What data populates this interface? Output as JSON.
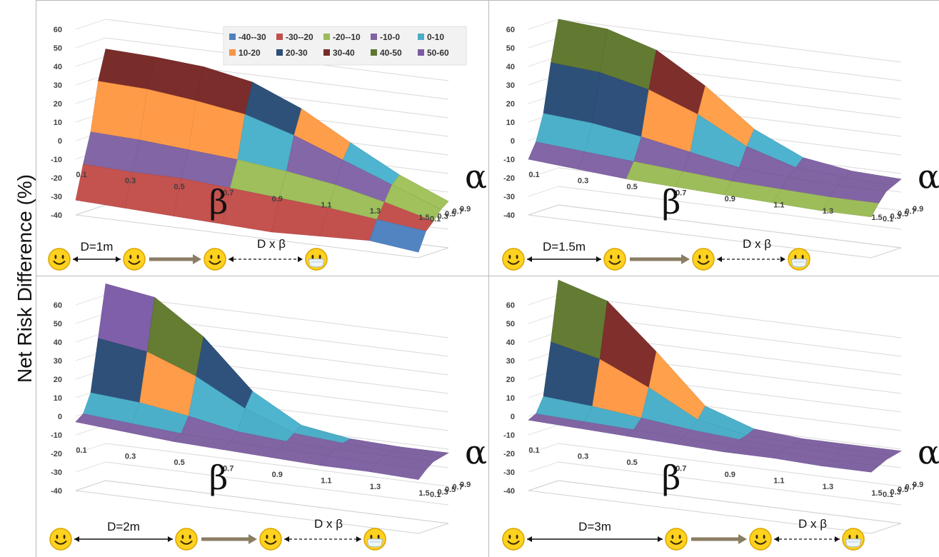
{
  "figure": {
    "ylabel": "Net Risk Difference (%)",
    "y_ticks": [
      "60",
      "50",
      "40",
      "30",
      "20",
      "10",
      "0",
      "-10",
      "-20",
      "-30",
      "-40"
    ],
    "beta_ticks": [
      "0.1",
      "0.3",
      "0.5",
      "0.7",
      "0.9",
      "1.1",
      "1.3",
      "1.5"
    ],
    "alpha_ticks": [
      "0.1",
      "0.3",
      "0.5",
      "0.7",
      "0.9"
    ],
    "beta_symbol": "β",
    "alpha_symbol": "α",
    "distance_product_label": "D x β"
  },
  "legend": {
    "items": [
      {
        "label": "-40--30",
        "color": "#4f81bd"
      },
      {
        "label": "-30--20",
        "color": "#c0504d"
      },
      {
        "label": "-20--10",
        "color": "#9bbb59"
      },
      {
        "label": "-10-0",
        "color": "#8064a2"
      },
      {
        "label": "0-10",
        "color": "#4bacc6"
      },
      {
        "label": "10-20",
        "color": "#f79646"
      },
      {
        "label": "20-30",
        "color": "#2c4d75"
      },
      {
        "label": "30-40",
        "color": "#772c2a"
      },
      {
        "label": "40-50",
        "color": "#5f7530"
      },
      {
        "label": "50-60",
        "color": "#7a5ba3"
      }
    ]
  },
  "chart_data": [
    {
      "type": "surface",
      "distance_label": "D=1m",
      "xlabel": "β",
      "zlabel": "α",
      "ylabel": "Net Risk Difference (%)",
      "x": [
        0.1,
        0.3,
        0.5,
        0.7,
        0.9,
        1.1,
        1.3,
        1.5
      ],
      "z": [
        0.1,
        0.3,
        0.5,
        0.7,
        0.9
      ],
      "ylim": [
        -40,
        60
      ],
      "values": [
        [
          -32,
          -33,
          -34,
          -35,
          -36,
          -35,
          -34,
          -37
        ],
        [
          -14,
          -15,
          -15,
          -17,
          -19,
          -21,
          -24,
          -27
        ],
        [
          2,
          1,
          -1,
          -3,
          -6,
          -10,
          -16,
          -23
        ],
        [
          28,
          27,
          24,
          20,
          12,
          2,
          -8,
          -18
        ],
        [
          44,
          43,
          41,
          36,
          25,
          10,
          -4,
          -15
        ]
      ]
    },
    {
      "type": "surface",
      "distance_label": "D=1.5m",
      "xlabel": "β",
      "zlabel": "α",
      "ylabel": "Net Risk Difference (%)",
      "x": [
        0.1,
        0.3,
        0.5,
        0.7,
        0.9,
        1.1,
        1.3,
        1.5
      ],
      "z": [
        0.1,
        0.3,
        0.5,
        0.7,
        0.9
      ],
      "ylim": [
        -40,
        60
      ],
      "values": [
        [
          -10,
          -12,
          -14,
          -15,
          -16,
          -17,
          -18,
          -18
        ],
        [
          -2,
          -4,
          -6,
          -8,
          -10,
          -11,
          -12,
          -12
        ],
        [
          12,
          10,
          6,
          1,
          -4,
          -6,
          -7,
          -7
        ],
        [
          38,
          36,
          30,
          20,
          6,
          -2,
          -4,
          -5
        ],
        [
          60,
          58,
          50,
          34,
          14,
          2,
          -2,
          -3
        ]
      ]
    },
    {
      "type": "surface",
      "distance_label": "D=2m",
      "xlabel": "β",
      "zlabel": "α",
      "ylabel": "Net Risk Difference (%)",
      "x": [
        0.1,
        0.3,
        0.5,
        0.7,
        0.9,
        1.1,
        1.3,
        1.5
      ],
      "z": [
        0.1,
        0.3,
        0.5,
        0.7,
        0.9
      ],
      "ylim": [
        -40,
        60
      ],
      "values": [
        [
          -3,
          -5,
          -7,
          -8,
          -9,
          -10,
          -10,
          -11
        ],
        [
          0,
          -2,
          -4,
          -5,
          -6,
          -6,
          -7,
          -7
        ],
        [
          10,
          8,
          4,
          -1,
          -3,
          -4,
          -4,
          -4
        ],
        [
          38,
          34,
          24,
          10,
          0,
          -2,
          -3,
          -3
        ],
        [
          66,
          62,
          44,
          18,
          3,
          -1,
          -2,
          -2
        ]
      ]
    },
    {
      "type": "surface",
      "distance_label": "D=3m",
      "xlabel": "β",
      "zlabel": "α",
      "ylabel": "Net Risk Difference (%)",
      "x": [
        0.1,
        0.3,
        0.5,
        0.7,
        0.9,
        1.1,
        1.3,
        1.5
      ],
      "z": [
        0.1,
        0.3,
        0.5,
        0.7,
        0.9
      ],
      "ylim": [
        -40,
        60
      ],
      "values": [
        [
          -2,
          -3,
          -4,
          -5,
          -6,
          -6,
          -7,
          -7
        ],
        [
          0,
          -1,
          -2,
          -3,
          -4,
          -4,
          -5,
          -5
        ],
        [
          8,
          6,
          3,
          0,
          -2,
          -3,
          -3,
          -3
        ],
        [
          36,
          30,
          18,
          4,
          -1,
          -2,
          -2,
          -2
        ],
        [
          68,
          60,
          36,
          10,
          1,
          -1,
          -1,
          -1
        ]
      ]
    }
  ]
}
